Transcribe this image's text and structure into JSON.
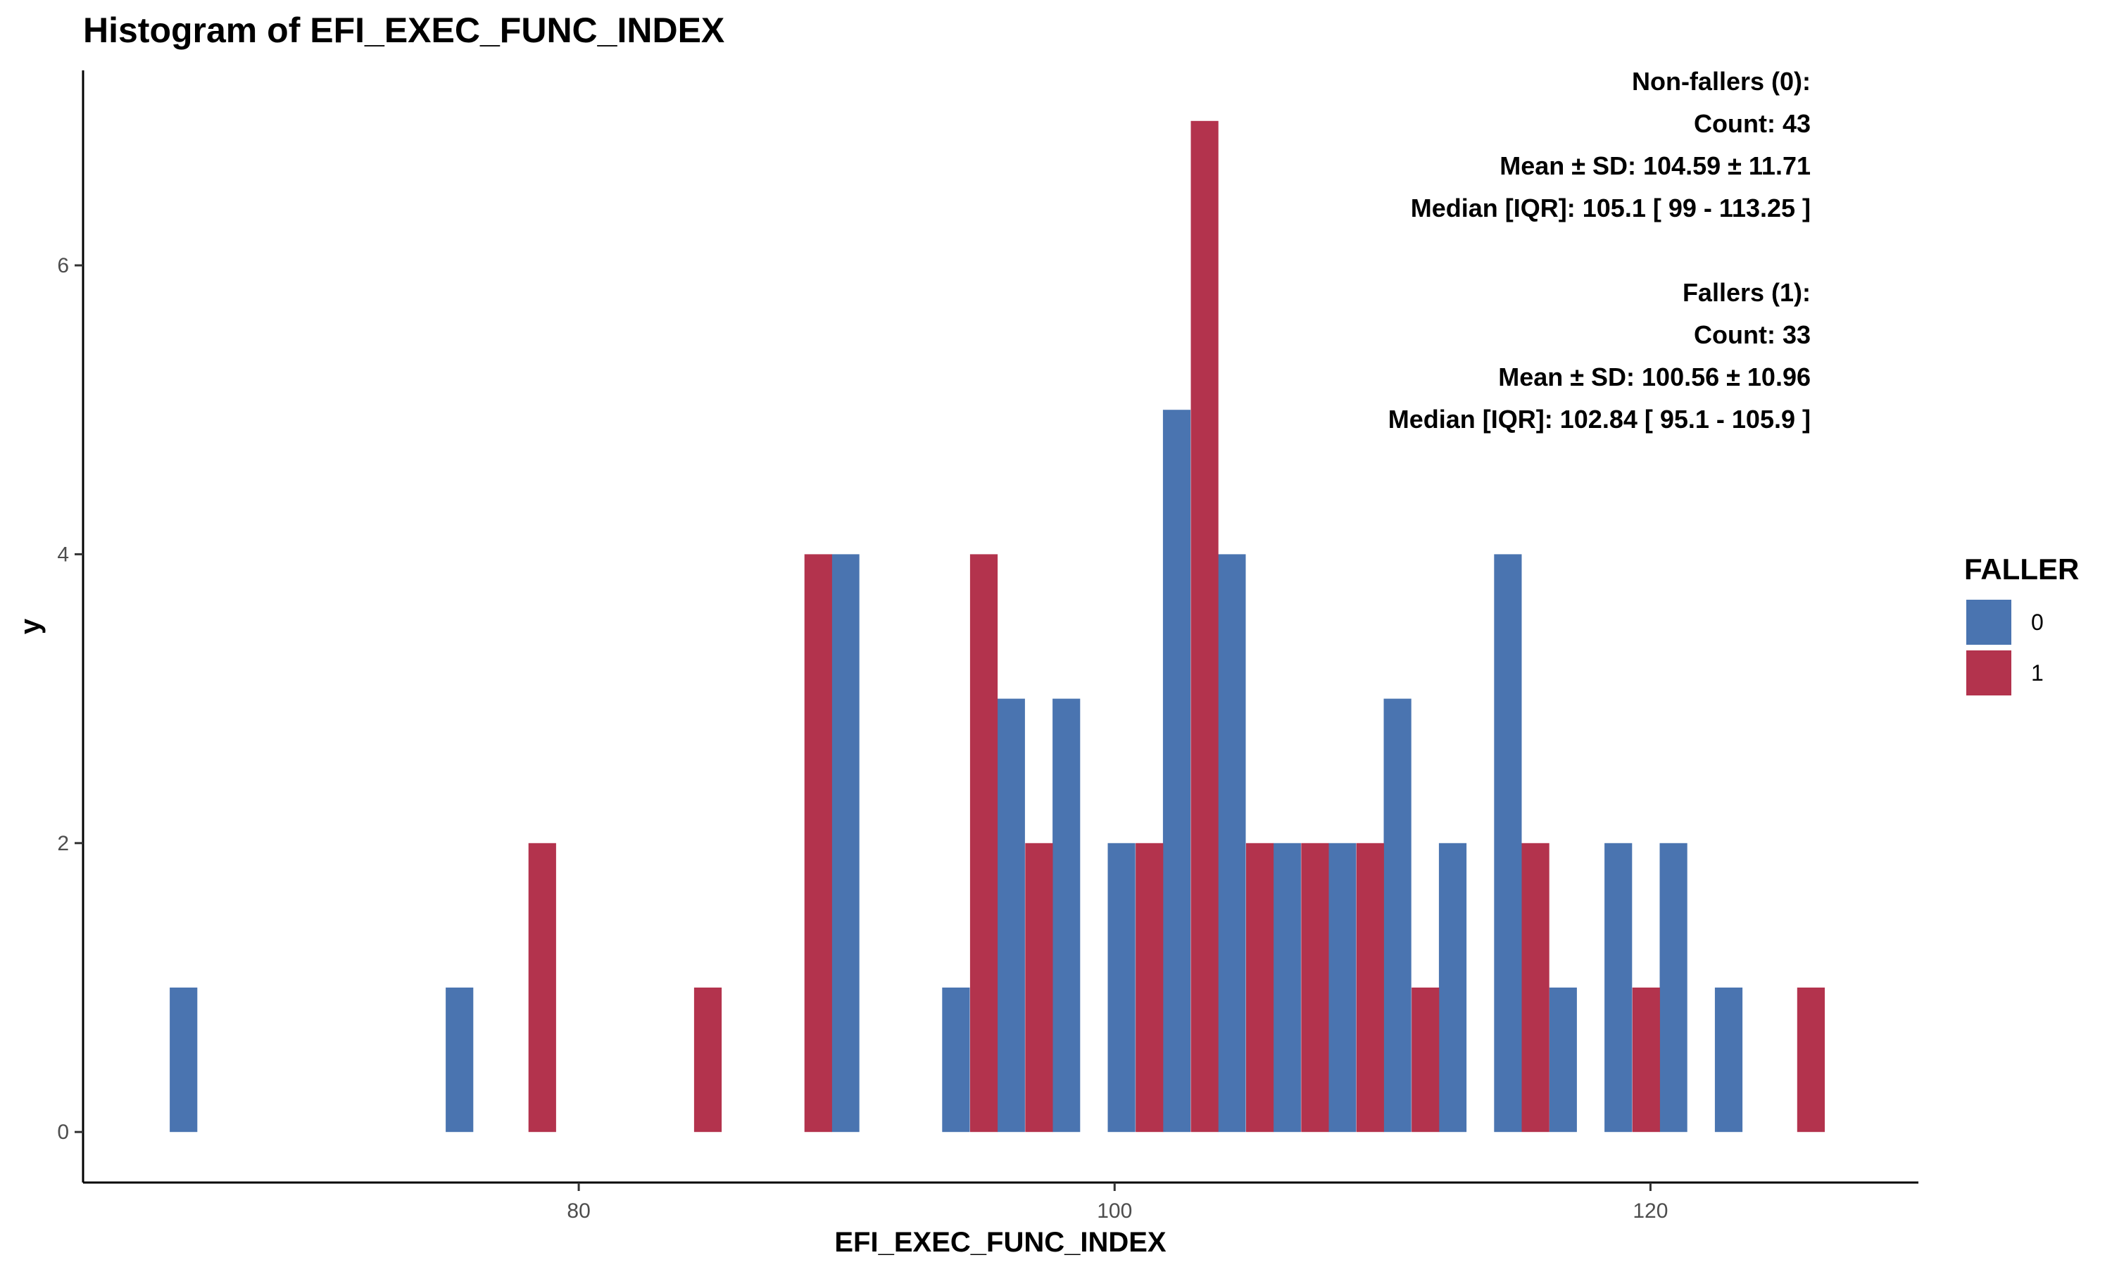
{
  "chart_data": {
    "type": "bar",
    "title": "Histogram of EFI_EXEC_FUNC_INDEX",
    "xlabel": "EFI_EXEC_FUNC_INDEX",
    "ylabel": "y",
    "xlim": [
      61.5,
      130.0
    ],
    "ylim": [
      -0.35,
      7.35
    ],
    "x_ticks": [
      80,
      100,
      120
    ],
    "y_ticks": [
      0,
      2,
      4,
      6
    ],
    "bin_width": 1.03,
    "grid": false,
    "legend": {
      "title": "FALLER",
      "position": "right"
    },
    "series": [
      {
        "name": "0",
        "color": "#4A74B0",
        "bars": [
          {
            "x": 65.25,
            "y": 1
          },
          {
            "x": 75.55,
            "y": 1
          },
          {
            "x": 89.96,
            "y": 4
          },
          {
            "x": 94.08,
            "y": 1
          },
          {
            "x": 96.14,
            "y": 3
          },
          {
            "x": 98.2,
            "y": 3
          },
          {
            "x": 100.26,
            "y": 2
          },
          {
            "x": 102.32,
            "y": 5
          },
          {
            "x": 104.38,
            "y": 4
          },
          {
            "x": 106.44,
            "y": 2
          },
          {
            "x": 108.5,
            "y": 2
          },
          {
            "x": 110.56,
            "y": 3
          },
          {
            "x": 112.62,
            "y": 2
          },
          {
            "x": 114.68,
            "y": 4
          },
          {
            "x": 116.74,
            "y": 1
          },
          {
            "x": 118.8,
            "y": 2
          },
          {
            "x": 120.86,
            "y": 2
          },
          {
            "x": 122.92,
            "y": 1
          }
        ]
      },
      {
        "name": "1",
        "color": "#B3334D",
        "bars": [
          {
            "x": 78.64,
            "y": 2
          },
          {
            "x": 84.82,
            "y": 1
          },
          {
            "x": 88.94,
            "y": 4
          },
          {
            "x": 95.12,
            "y": 4
          },
          {
            "x": 97.18,
            "y": 2
          },
          {
            "x": 101.3,
            "y": 2
          },
          {
            "x": 103.36,
            "y": 7
          },
          {
            "x": 105.42,
            "y": 2
          },
          {
            "x": 107.48,
            "y": 2
          },
          {
            "x": 109.54,
            "y": 2
          },
          {
            "x": 111.6,
            "y": 1
          },
          {
            "x": 115.71,
            "y": 2
          },
          {
            "x": 119.84,
            "y": 1
          },
          {
            "x": 125.99,
            "y": 1
          }
        ]
      }
    ],
    "annotation_lines": [
      "Non-fallers (0):",
      "Count: 43",
      "Mean ± SD: 104.59 ± 11.71",
      "Median [IQR]: 105.1 [ 99 - 113.25 ]",
      "",
      "Fallers (1):",
      "Count: 33",
      "Mean ± SD: 100.56 ± 10.96",
      "Median [IQR]: 102.84 [ 95.1 - 105.9 ]"
    ]
  }
}
